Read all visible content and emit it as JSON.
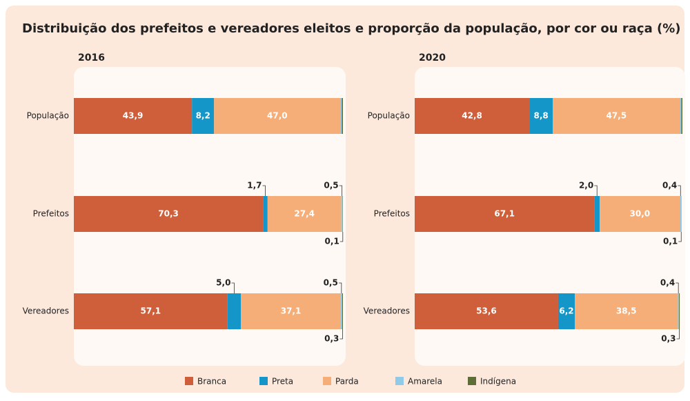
{
  "title": "Distribuição dos prefeitos e vereadores eleitos e proporção da população, por cor ou raça (%)",
  "chart_data": [
    {
      "type": "bar",
      "title": "2016",
      "categories": [
        "População",
        "Prefeitos",
        "Vereadores"
      ],
      "xlim": [
        0,
        100
      ],
      "series": [
        {
          "name": "Branca",
          "color": "#cf5f3a",
          "values": [
            43.9,
            70.3,
            57.1
          ],
          "value_labels": [
            "43,9",
            "70,3",
            "57,1"
          ]
        },
        {
          "name": "Preta",
          "color": "#1496c8",
          "values": [
            8.2,
            1.7,
            5.0
          ],
          "value_labels": [
            "8,2",
            "1,7",
            "5,0"
          ]
        },
        {
          "name": "Parda",
          "color": "#f5ae78",
          "values": [
            47.0,
            27.4,
            37.1
          ],
          "value_labels": [
            "47,0",
            "27,4",
            "37,1"
          ]
        },
        {
          "name": "Amarela",
          "color": "#8fcbe8",
          "values": [
            0.5,
            0.5,
            0.5
          ],
          "value_labels": [
            null,
            "0,5",
            "0,5"
          ]
        },
        {
          "name": "Indígena",
          "color": "#5f6e38",
          "values": [
            0.4,
            0.1,
            0.3
          ],
          "value_labels": [
            null,
            "0,1",
            "0,3"
          ]
        }
      ]
    },
    {
      "type": "bar",
      "title": "2020",
      "categories": [
        "População",
        "Prefeitos",
        "Vereadores"
      ],
      "xlim": [
        0,
        100
      ],
      "series": [
        {
          "name": "Branca",
          "color": "#cf5f3a",
          "values": [
            42.8,
            67.1,
            53.6
          ],
          "value_labels": [
            "42,8",
            "67,1",
            "53,6"
          ]
        },
        {
          "name": "Preta",
          "color": "#1496c8",
          "values": [
            8.8,
            2.0,
            6.2
          ],
          "value_labels": [
            "8,8",
            "2,0",
            "6,2"
          ]
        },
        {
          "name": "Parda",
          "color": "#f5ae78",
          "values": [
            47.5,
            30.0,
            38.5
          ],
          "value_labels": [
            "47,5",
            "30,0",
            "38,5"
          ]
        },
        {
          "name": "Amarela",
          "color": "#8fcbe8",
          "values": [
            0.5,
            0.4,
            0.4
          ],
          "value_labels": [
            null,
            "0,4",
            "0,4"
          ]
        },
        {
          "name": "Indígena",
          "color": "#5f6e38",
          "values": [
            0.4,
            0.1,
            0.3
          ],
          "value_labels": [
            null,
            "0,1",
            "0,3"
          ]
        }
      ]
    }
  ]
}
